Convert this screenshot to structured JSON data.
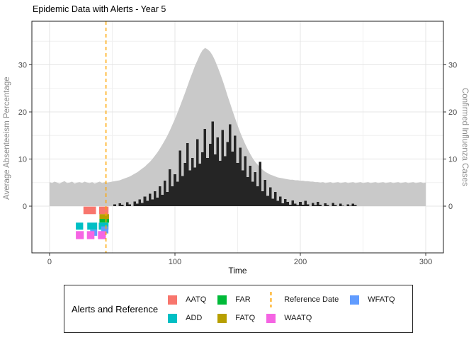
{
  "title": "Epidemic Data with Alerts - Year 5",
  "axes": {
    "x_title": "Time",
    "y_left_title": "Average Absenteeism Percentage",
    "y_right_title": "Confirmed Influenza Cases"
  },
  "legend": {
    "title": "Alerts and Reference",
    "entries": [
      {
        "label": "AATQ",
        "color": "#F8766D",
        "kind": "square"
      },
      {
        "label": "ADD",
        "color": "#00BFC4",
        "kind": "square"
      },
      {
        "label": "FAR",
        "color": "#00BA38",
        "kind": "square"
      },
      {
        "label": "FATQ",
        "color": "#B79F00",
        "kind": "square"
      },
      {
        "label": "Reference Date",
        "color": "#FFA500",
        "kind": "dashed-line"
      },
      {
        "label": "WAATQ",
        "color": "#F564E3",
        "kind": "square"
      },
      {
        "label": "WFATQ",
        "color": "#619CFF",
        "kind": "square"
      }
    ]
  },
  "chart_data": {
    "type": "area+bar",
    "title": "Epidemic Data with Alerts - Year 5",
    "xlabel": "Time",
    "ylabel_left": "Average Absenteeism Percentage",
    "ylabel_right": "Confirmed Influenza Cases",
    "xlim": [
      -14.1,
      314.1
    ],
    "ylim": [
      -9.92,
      39.25
    ],
    "x_major_ticks": [
      0,
      100,
      200,
      300
    ],
    "x_minor_gridlines": [
      50,
      150,
      250
    ],
    "y_major_ticks": [
      0,
      10,
      20,
      30
    ],
    "y_minor_gridlines": [
      5,
      15,
      25,
      35
    ],
    "grid": true,
    "legend_position": "bottom",
    "reference_date": 45,
    "colors": {
      "absenteeism_area": "#C9C9C9",
      "influenza_bars": "#252525",
      "reference_line": "#FFA500",
      "panel_border": "#1f1f1f",
      "major_grid": "#E4E4E4",
      "minor_grid": "#F0F0F0",
      "tick_label": "#4d4d4d",
      "axis_title_gray": "#8C8C8C"
    },
    "series": [
      {
        "name": "Average Absenteeism Percentage",
        "type": "area",
        "color": "#C9C9C9",
        "x_start": 0,
        "x_step": 2,
        "values": [
          5.1,
          4.9,
          5.2,
          5.0,
          4.8,
          5.1,
          5.3,
          4.9,
          5.0,
          5.2,
          4.8,
          5.0,
          5.1,
          4.9,
          5.2,
          5.0,
          4.9,
          5.1,
          4.8,
          5.0,
          5.2,
          4.9,
          5.1,
          5.0,
          5.1,
          5.2,
          5.3,
          5.4,
          5.5,
          5.7,
          5.9,
          6.1,
          6.3,
          6.6,
          6.9,
          7.2,
          7.6,
          8.0,
          8.4,
          8.9,
          9.4,
          10.0,
          10.7,
          11.4,
          12.2,
          13.1,
          14.0,
          15.0,
          16.1,
          17.3,
          18.5,
          19.8,
          21.2,
          22.6,
          24.0,
          25.5,
          27.0,
          28.4,
          29.8,
          31.0,
          32.2,
          33.1,
          33.6,
          33.3,
          32.8,
          32.0,
          30.9,
          29.6,
          28.2,
          26.7,
          25.1,
          23.4,
          21.8,
          20.2,
          18.6,
          17.1,
          15.7,
          14.4,
          13.2,
          12.1,
          11.1,
          10.2,
          9.4,
          8.8,
          8.2,
          7.7,
          7.3,
          7.0,
          6.7,
          6.5,
          6.3,
          6.1,
          6.0,
          5.9,
          5.8,
          5.7,
          5.6,
          5.6,
          5.5,
          5.5,
          5.4,
          5.4,
          5.3,
          5.3,
          5.2,
          5.2,
          5.1,
          5.1,
          5.0,
          5.1,
          4.9,
          5.0,
          5.1,
          4.9,
          5.0,
          5.1,
          4.9,
          5.0,
          5.1,
          4.9,
          5.0,
          5.1,
          4.9,
          5.0,
          5.1,
          4.9,
          5.0,
          5.1,
          4.9,
          5.0,
          5.1,
          4.9,
          5.0,
          5.1,
          4.9,
          5.0,
          5.1,
          4.9,
          5.0,
          5.1,
          4.9,
          5.0,
          5.1,
          4.9,
          5.0,
          5.1,
          4.9,
          5.0,
          5.1,
          4.9,
          5.0
        ]
      },
      {
        "name": "Confirmed Influenza Cases",
        "type": "bar",
        "color": "#252525",
        "x_start": 50,
        "x_step": 2,
        "values": [
          0,
          0.4,
          0,
          0.6,
          0.3,
          0,
          0.8,
          0.4,
          0,
          1.0,
          0.5,
          1.4,
          0.7,
          2.0,
          1.1,
          2.6,
          1.4,
          3.2,
          1.8,
          4.2,
          2.4,
          5.4,
          3.0,
          7.8,
          4.2,
          6.8,
          5.2,
          11.8,
          6.4,
          9.2,
          13.4,
          7.6,
          10.2,
          8.2,
          14.2,
          9.0,
          11.4,
          16.4,
          10.2,
          13.2,
          18.0,
          11.0,
          14.6,
          9.6,
          16.2,
          10.6,
          13.6,
          17.4,
          11.6,
          15.0,
          9.2,
          12.4,
          7.6,
          10.6,
          6.2,
          8.6,
          5.2,
          7.2,
          4.2,
          9.4,
          3.2,
          5.6,
          2.2,
          4.0,
          1.6,
          3.0,
          1.1,
          2.0,
          0.6,
          1.5,
          0.9,
          0.3,
          1.2,
          0.5,
          0.2,
          0.9,
          0.3,
          1.1,
          0.4,
          0,
          0.7,
          0.2,
          0.9,
          0.3,
          0,
          0.6,
          0.2,
          0,
          0.7,
          0.2,
          0,
          0.5,
          0.1,
          0,
          0.4,
          0.1,
          0.5,
          0.2,
          0,
          0,
          0
        ]
      }
    ],
    "alerts": {
      "colors": {
        "AATQ": "#F8766D",
        "ADD": "#00BFC4",
        "FAR": "#00BA38",
        "FATQ": "#B79F00",
        "WAATQ": "#F564E3",
        "WFATQ": "#619CFF"
      },
      "tiles": [
        {
          "type": "AATQ",
          "t0": 27.0,
          "t1": 37.0,
          "v0": -0.1,
          "v1": -1.7
        },
        {
          "type": "AATQ",
          "t0": 39.5,
          "t1": 47.0,
          "v0": -0.1,
          "v1": -1.7
        },
        {
          "type": "FATQ",
          "t0": 39.8,
          "t1": 47.5,
          "v0": -1.7,
          "v1": -2.7
        },
        {
          "type": "FAR",
          "t0": 39.8,
          "t1": 47.5,
          "v0": -2.7,
          "v1": -3.5
        },
        {
          "type": "ADD",
          "t0": 21.0,
          "t1": 26.8,
          "v0": -3.5,
          "v1": -5.0
        },
        {
          "type": "ADD",
          "t0": 30.1,
          "t1": 38.0,
          "v0": -3.5,
          "v1": -5.0
        },
        {
          "type": "ADD",
          "t0": 39.2,
          "t1": 47.0,
          "v0": -3.5,
          "v1": -5.0
        },
        {
          "type": "WFATQ",
          "t0": 32.4,
          "t1": 38.0,
          "v0": -5.0,
          "v1": -6.3
        },
        {
          "type": "WFATQ",
          "t0": 41.1,
          "t1": 46.9,
          "v0": -4.3,
          "v1": -5.8
        },
        {
          "type": "WAATQ",
          "t0": 21.0,
          "t1": 27.3,
          "v0": -5.3,
          "v1": -7.0
        },
        {
          "type": "WAATQ",
          "t0": 29.8,
          "t1": 35.8,
          "v0": -5.3,
          "v1": -7.0
        },
        {
          "type": "WAATQ",
          "t0": 38.6,
          "t1": 44.9,
          "v0": -5.3,
          "v1": -7.0
        }
      ]
    }
  }
}
